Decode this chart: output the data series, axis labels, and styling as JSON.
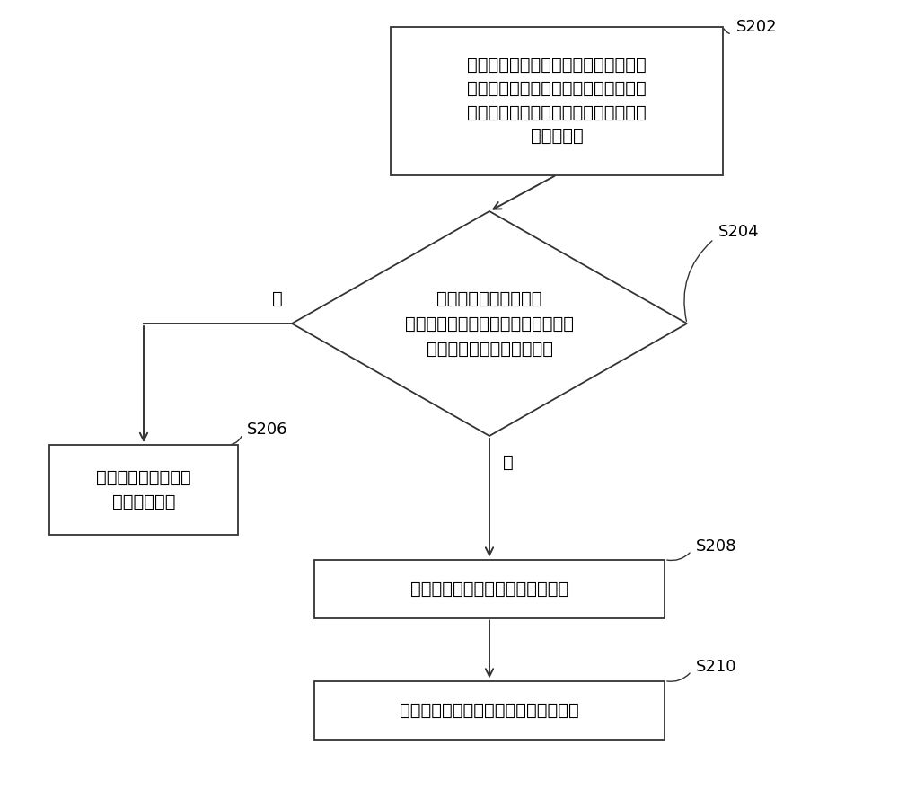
{
  "bg_color": "#ffffff",
  "box_color": "#ffffff",
  "box_edge_color": "#333333",
  "arrow_color": "#333333",
  "text_color": "#000000",
  "font_size": 14,
  "label_font_size": 13,
  "s202_label": "S202",
  "s202_text": "当移动终端在低制式网络模式下接收到\n网络设备的重定向信令时，调取切换至\n低制式网络模式前的高制式网络模式中\n的会话记录",
  "s204_label": "S204",
  "s204_text": "根据会话记录，判断由\n高制式网络模式切换至低制式网络模\n式的过程中是否有鉴权记录",
  "s206_label": "S206",
  "s206_text": "执行重定向信令对应\n的重定向操作",
  "s208_label": "S208",
  "s208_text": "确定会话记录符合预设的伪装特征",
  "s210_label": "S210",
  "s210_text": "拒绝执行重定向信令对应的重定向操作",
  "yes_label": "是",
  "no_label": "否"
}
